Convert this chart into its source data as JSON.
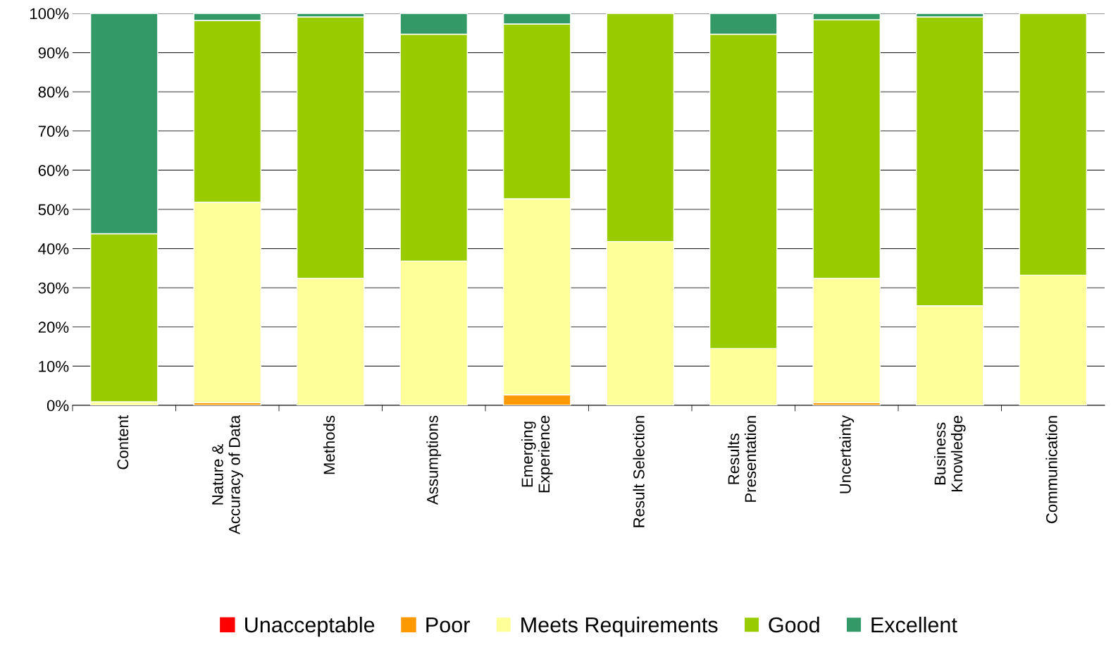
{
  "chart_data": {
    "type": "bar",
    "stacked": true,
    "categories": [
      "Content",
      "Nature &\nAccuracy of Data",
      "Methods",
      "Assumptions",
      "Emerging\nExperience",
      "Result Selection",
      "Results\nPresentation",
      "Uncertainty",
      "Business\nKnowledge",
      "Communication"
    ],
    "series": [
      {
        "name": "Unacceptable",
        "color": "#ff0000",
        "values": [
          0,
          0,
          0,
          0,
          0,
          0,
          0,
          0,
          0,
          0
        ]
      },
      {
        "name": "Poor",
        "color": "#ff9900",
        "values": [
          0,
          0.7,
          0,
          0,
          2.7,
          0,
          0,
          0.7,
          0,
          0
        ]
      },
      {
        "name": "Meets Requirements",
        "color": "#ffff99",
        "values": [
          0.9,
          51.1,
          32.4,
          36.8,
          50,
          41.8,
          14.5,
          31.7,
          25.4,
          33.2
        ]
      },
      {
        "name": "Good",
        "color": "#99cc00",
        "values": [
          42.9,
          46.4,
          66.7,
          57.9,
          44.6,
          58.2,
          80.2,
          66,
          73.7,
          66.8
        ]
      },
      {
        "name": "Excellent",
        "color": "#339966",
        "values": [
          56.2,
          1.8,
          0.9,
          5.3,
          2.7,
          0,
          5.3,
          1.6,
          0.9,
          0
        ]
      }
    ],
    "ylim": [
      0,
      100
    ],
    "yticks": [
      {
        "value": 0,
        "label": "0%"
      },
      {
        "value": 10,
        "label": "10%"
      },
      {
        "value": 20,
        "label": "20%"
      },
      {
        "value": 30,
        "label": "30%"
      },
      {
        "value": 40,
        "label": "40%"
      },
      {
        "value": 50,
        "label": "50%"
      },
      {
        "value": 60,
        "label": "60%"
      },
      {
        "value": 70,
        "label": "70%"
      },
      {
        "value": 80,
        "label": "80%"
      },
      {
        "value": 90,
        "label": "90%"
      },
      {
        "value": 100,
        "label": "100%"
      }
    ],
    "grid": "y",
    "legend": "bottom"
  }
}
